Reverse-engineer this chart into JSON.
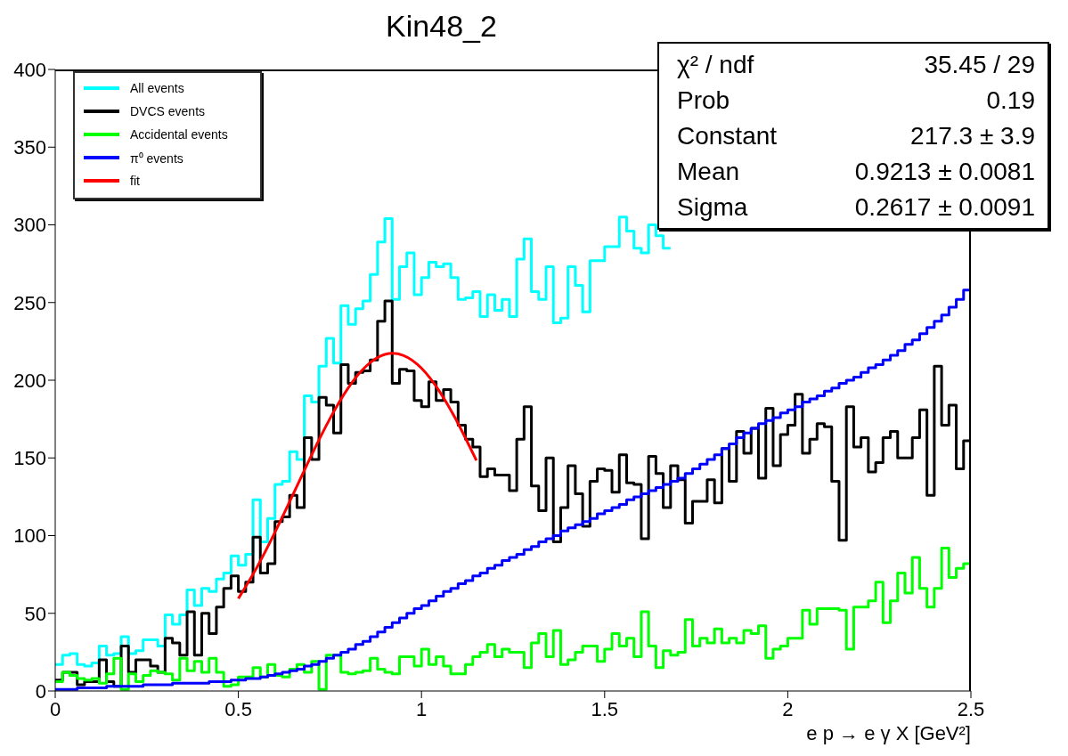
{
  "chart_data": {
    "type": "histogram",
    "title": "Kin48_2",
    "xlabel": "e p → e γ X [GeV²]",
    "xlim": [
      0,
      2.5
    ],
    "xticks": [
      0,
      0.5,
      1,
      1.5,
      2,
      2.5
    ],
    "ylim": [
      0,
      400
    ],
    "yticks": [
      0,
      50,
      100,
      150,
      200,
      250,
      300,
      350,
      400
    ],
    "legend": "top left",
    "annotations": [
      "χ² / ndf",
      "35.45 / 29",
      "Prob",
      "0.19",
      "Constant",
      "217.3 ± 3.9",
      "Mean",
      "0.9213 ± 0.0081",
      "Sigma",
      "0.2617 ± 0.0091"
    ],
    "bins": [
      0,
      0.02,
      0.04,
      0.06,
      0.08,
      0.1,
      0.12,
      0.14,
      0.16,
      0.18,
      0.2,
      0.22,
      0.24,
      0.26,
      0.28,
      0.3,
      0.32,
      0.34,
      0.36,
      0.38,
      0.4,
      0.42,
      0.44,
      0.46,
      0.48,
      0.5,
      0.52,
      0.54,
      0.56,
      0.58,
      0.6,
      0.62,
      0.64,
      0.66,
      0.68,
      0.7,
      0.72,
      0.74,
      0.76,
      0.78,
      0.8,
      0.82,
      0.84,
      0.86,
      0.88,
      0.9,
      0.92,
      0.94,
      0.96,
      0.98,
      1,
      1.02,
      1.04,
      1.06,
      1.08,
      1.1,
      1.12,
      1.14,
      1.16,
      1.18,
      1.2,
      1.22,
      1.24,
      1.26,
      1.28,
      1.3,
      1.32,
      1.34,
      1.36,
      1.38,
      1.4,
      1.42,
      1.44,
      1.46,
      1.48,
      1.5,
      1.52,
      1.54,
      1.56,
      1.58,
      1.6,
      1.62,
      1.64,
      1.66,
      1.68,
      1.7,
      1.72,
      1.74,
      1.76,
      1.78,
      1.8,
      1.82,
      1.84,
      1.86,
      1.88,
      1.9,
      1.92,
      1.94,
      1.96,
      1.98,
      2,
      2.02,
      2.04,
      2.06,
      2.08,
      2.1,
      2.12,
      2.14,
      2.16,
      2.18,
      2.2,
      2.22,
      2.24,
      2.26,
      2.28,
      2.3,
      2.32,
      2.34,
      2.36,
      2.38,
      2.4,
      2.42,
      2.44,
      2.46,
      2.48,
      2.5
    ],
    "series": [
      {
        "name": "All events",
        "color": "#00ffff",
        "bins": [
          0,
          0.02,
          0.04,
          0.06,
          0.08,
          0.1,
          0.12,
          0.14,
          0.16,
          0.18,
          0.2,
          0.22,
          0.24,
          0.26,
          0.28,
          0.3,
          0.32,
          0.34,
          0.36,
          0.38,
          0.4,
          0.42,
          0.44,
          0.46,
          0.48,
          0.5,
          0.52,
          0.54,
          0.56,
          0.58,
          0.6,
          0.62,
          0.64,
          0.66,
          0.68,
          0.7,
          0.72,
          0.74,
          0.76,
          0.78,
          0.8,
          0.82,
          0.84,
          0.86,
          0.88,
          0.9,
          0.92,
          0.94,
          0.96,
          0.98,
          1,
          1.02,
          1.04,
          1.06,
          1.08,
          1.1,
          1.12,
          1.14,
          1.16,
          1.18,
          1.2,
          1.22,
          1.24,
          1.26,
          1.28,
          1.3,
          1.32,
          1.34,
          1.36,
          1.38,
          1.4,
          1.42,
          1.44,
          1.46,
          1.48,
          1.5,
          1.52,
          1.54,
          1.56,
          1.58,
          1.6,
          1.62,
          1.64,
          1.66,
          1.68
        ],
        "values": [
          17,
          23,
          24,
          17,
          16,
          18,
          29,
          23,
          24,
          35,
          24,
          26,
          33,
          33,
          29,
          49,
          43,
          49,
          65,
          55,
          66,
          64,
          72,
          76,
          87,
          81,
          88,
          123,
          96,
          111,
          133,
          135,
          154,
          149,
          190,
          186,
          209,
          227,
          211,
          248,
          236,
          246,
          251,
          268,
          289,
          304,
          252,
          273,
          282,
          255,
          266,
          276,
          273,
          275,
          266,
          252,
          253,
          257,
          241,
          255,
          245,
          252,
          241,
          278,
          291,
          257,
          252,
          273,
          237,
          240,
          273,
          261,
          244,
          277,
          277,
          286,
          286,
          305,
          296,
          285,
          282,
          300,
          293,
          285
        ]
      },
      {
        "name": "DVCS events",
        "color": "#000000",
        "values": [
          7,
          12,
          12,
          4,
          6,
          6,
          20,
          6,
          3,
          29,
          12,
          20,
          20,
          16,
          12,
          34,
          31,
          23,
          51,
          23,
          50,
          37,
          54,
          66,
          74,
          64,
          70,
          99,
          76,
          82,
          109,
          112,
          126,
          118,
          163,
          149,
          189,
          184,
          166,
          210,
          198,
          205,
          206,
          213,
          238,
          251,
          198,
          207,
          206,
          187,
          183,
          199,
          187,
          194,
          186,
          171,
          162,
          157,
          138,
          143,
          139,
          139,
          129,
          162,
          183,
          132,
          116,
          150,
          96,
          118,
          145,
          127,
          106,
          135,
          143,
          142,
          128,
          152,
          134,
          133,
          98,
          151,
          140,
          118,
          145,
          136,
          108,
          122,
          122,
          136,
          121,
          156,
          135,
          167,
          153,
          169,
          137,
          182,
          145,
          165,
          171,
          191,
          153,
          162,
          172,
          170,
          135,
          97,
          183,
          157,
          163,
          141,
          147,
          163,
          167,
          150,
          150,
          163,
          181,
          126,
          209,
          171,
          184,
          143,
          161
        ]
      },
      {
        "name": "Accidental events",
        "color": "#00ff00",
        "values": [
          6,
          12,
          10,
          8,
          7,
          8,
          5,
          11,
          21,
          1,
          11,
          6,
          10,
          13,
          12,
          11,
          7,
          21,
          13,
          19,
          12,
          21,
          12,
          3,
          4,
          9,
          9,
          15,
          9,
          17,
          10,
          9,
          14,
          17,
          12,
          19,
          1,
          23,
          23,
          12,
          11,
          12,
          13,
          21,
          14,
          12,
          11,
          22,
          22,
          16,
          27,
          17,
          22,
          16,
          11,
          11,
          17,
          22,
          25,
          30,
          22,
          27,
          25,
          25,
          15,
          31,
          37,
          22,
          39,
          17,
          20,
          25,
          29,
          29,
          19,
          27,
          37,
          29,
          34,
          22,
          51,
          29,
          15,
          26,
          23,
          25,
          46,
          29,
          34,
          31,
          40,
          31,
          34,
          31,
          39,
          37,
          42,
          21,
          27,
          29,
          34,
          34,
          52,
          43,
          53,
          53,
          53,
          52,
          27,
          54,
          54,
          58,
          70,
          44,
          58,
          76,
          63,
          86,
          66,
          54,
          66,
          92,
          73,
          79,
          82
        ]
      },
      {
        "name": "π⁰ events",
        "color": "#0000ff",
        "values": [
          1,
          1,
          1,
          2,
          2,
          2,
          2,
          3,
          3,
          3,
          3,
          3,
          4,
          4,
          4,
          4,
          5,
          5,
          5,
          5,
          5,
          6,
          6,
          6,
          7,
          7,
          8,
          8,
          9,
          10,
          11,
          12,
          13,
          14,
          16,
          17,
          19,
          21,
          23,
          25,
          27,
          30,
          32,
          35,
          38,
          41,
          44,
          47,
          50,
          53,
          55,
          58,
          61,
          64,
          66,
          69,
          71,
          74,
          76,
          79,
          81,
          84,
          86,
          88,
          91,
          93,
          96,
          98,
          100,
          103,
          105,
          107,
          109,
          111,
          114,
          116,
          118,
          120,
          123,
          125,
          127,
          129,
          131,
          133,
          135,
          137,
          140,
          143,
          146,
          149,
          152,
          156,
          159,
          163,
          166,
          169,
          172,
          174,
          176,
          179,
          181,
          183,
          186,
          188,
          190,
          193,
          195,
          198,
          200,
          202,
          205,
          208,
          210,
          213,
          216,
          219,
          223,
          226,
          230,
          234,
          238,
          242,
          247,
          252,
          258
        ]
      },
      {
        "name": "fit",
        "type": "line",
        "color": "#ff0000",
        "x": [
          0.5,
          0.55,
          0.6,
          0.65,
          0.7,
          0.75,
          0.8,
          0.85,
          0.9,
          0.95,
          1,
          1.05,
          1.1,
          1.15
        ],
        "values": [
          59.5,
          79.3,
          102.2,
          126.9,
          151.9,
          175.3,
          195.1,
          209.3,
          216.6,
          216,
          207.7,
          192.5,
          172.1,
          148.3
        ]
      }
    ]
  }
}
